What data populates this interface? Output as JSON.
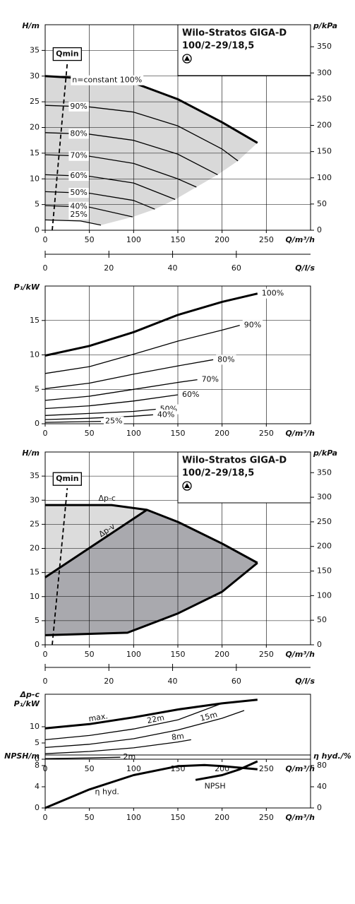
{
  "chart_data": [
    {
      "type": "line",
      "title": "Wilo-Stratos GIGA-D",
      "subtitle": "100/2–29/18,5",
      "xlabel": "Q/m³/h",
      "ylabel": "H/m",
      "y2label": "p/kPa",
      "xlim": [
        0,
        300
      ],
      "xticks": [
        0,
        50,
        100,
        150,
        200,
        250
      ],
      "ylim": [
        0,
        40
      ],
      "yticks": [
        0,
        5,
        10,
        15,
        20,
        25,
        30,
        35
      ],
      "y2lim": [
        0,
        392
      ],
      "y2ticks": [
        0,
        50,
        100,
        150,
        200,
        250,
        300,
        350
      ],
      "grid": true,
      "color": "#000000",
      "fill": [
        "#d9d9d9"
      ],
      "qmin": {
        "name": "Qmin",
        "x": [
          8,
          25
        ],
        "values": [
          0,
          32.5
        ]
      },
      "series": [
        {
          "name": "n=constant 100%",
          "x": [
            0,
            50,
            100,
            150,
            200,
            240
          ],
          "values": [
            30,
            29.5,
            28.7,
            25.5,
            21,
            17
          ]
        },
        {
          "name": "90%",
          "x": [
            0,
            50,
            100,
            150,
            200,
            218
          ],
          "values": [
            24.3,
            24,
            23,
            20.3,
            15.8,
            13.5
          ]
        },
        {
          "name": "80%",
          "x": [
            0,
            50,
            100,
            150,
            195
          ],
          "values": [
            19,
            18.7,
            17.5,
            14.8,
            10.8
          ]
        },
        {
          "name": "70%",
          "x": [
            0,
            50,
            100,
            150,
            171
          ],
          "values": [
            14.7,
            14.4,
            13,
            10,
            8.4
          ]
        },
        {
          "name": "60%",
          "x": [
            0,
            50,
            100,
            147
          ],
          "values": [
            10.8,
            10.5,
            9.2,
            6
          ]
        },
        {
          "name": "50%",
          "x": [
            0,
            50,
            100,
            124
          ],
          "values": [
            7.5,
            7.2,
            5.8,
            4.1
          ]
        },
        {
          "name": "40%",
          "x": [
            0,
            50,
            99
          ],
          "values": [
            4.8,
            4.5,
            2.6
          ]
        },
        {
          "name": "25%",
          "x": [
            0,
            40,
            63
          ],
          "values": [
            2,
            1.8,
            1.0
          ]
        }
      ]
    },
    {
      "type": "axis",
      "xlabel": "Q/l/s",
      "xlim": [
        0,
        83.3
      ],
      "xticks": [
        0,
        20,
        40,
        60
      ]
    },
    {
      "type": "line",
      "xlabel": "Q/m³/h",
      "ylabel": "P₁/kW",
      "xlim": [
        0,
        300
      ],
      "xticks": [
        0,
        50,
        100,
        150,
        200,
        250
      ],
      "ylim": [
        0,
        20
      ],
      "yticks": [
        0,
        5,
        10,
        15
      ],
      "grid": true,
      "color": "#000000",
      "series": [
        {
          "name": "100%",
          "x": [
            0,
            50,
            100,
            150,
            200,
            240
          ],
          "values": [
            9.9,
            11.3,
            13.3,
            15.8,
            17.7,
            18.9
          ]
        },
        {
          "name": "90%",
          "x": [
            0,
            50,
            100,
            150,
            200,
            220
          ],
          "values": [
            7.3,
            8.3,
            10.1,
            12,
            13.6,
            14.3
          ]
        },
        {
          "name": "80%",
          "x": [
            0,
            50,
            100,
            150,
            190
          ],
          "values": [
            5.1,
            5.9,
            7.2,
            8.4,
            9.3
          ]
        },
        {
          "name": "70%",
          "x": [
            0,
            50,
            100,
            150,
            172
          ],
          "values": [
            3.4,
            4,
            5,
            6,
            6.4
          ]
        },
        {
          "name": "60%",
          "x": [
            0,
            50,
            100,
            150
          ],
          "values": [
            2.2,
            2.6,
            3.3,
            4.2
          ]
        },
        {
          "name": "50%",
          "x": [
            0,
            50,
            100,
            125
          ],
          "values": [
            1.2,
            1.5,
            1.8,
            2.1
          ]
        },
        {
          "name": "40%",
          "x": [
            0,
            50,
            100,
            122
          ],
          "values": [
            0.6,
            0.8,
            1.1,
            1.3
          ]
        },
        {
          "name": "25%",
          "x": [
            0,
            40,
            63
          ],
          "values": [
            0.2,
            0.3,
            0.35
          ]
        }
      ]
    },
    {
      "type": "line",
      "title": "Wilo-Stratos GIGA-D",
      "subtitle": "100/2–29/18,5",
      "xlabel": "Q/m³/h",
      "ylabel": "H/m",
      "y2label": "p/kPa",
      "xlim": [
        0,
        300
      ],
      "xticks": [
        0,
        50,
        100,
        150,
        200,
        250
      ],
      "ylim": [
        0,
        40
      ],
      "yticks": [
        0,
        5,
        10,
        15,
        20,
        25,
        30,
        35
      ],
      "y2lim": [
        0,
        392
      ],
      "y2ticks": [
        0,
        50,
        100,
        150,
        200,
        250,
        300,
        350
      ],
      "grid": true,
      "color": "#000000",
      "fill": [
        "#dcdcdc",
        "#a9a9ae"
      ],
      "qmin": {
        "name": "Qmin",
        "x": [
          8,
          25
        ],
        "values": [
          0,
          32.5
        ]
      },
      "series": [
        {
          "name": "Δp-c",
          "x": [
            0,
            75,
            115,
            150,
            200,
            240
          ],
          "values": [
            29,
            29,
            28,
            25.5,
            21,
            17
          ]
        },
        {
          "name": "Δp-v",
          "x": [
            0,
            115
          ],
          "values": [
            14,
            28
          ]
        },
        {
          "x": [
            0,
            93,
            150,
            200,
            240
          ],
          "values": [
            2,
            2.5,
            6.5,
            11,
            17
          ]
        }
      ]
    },
    {
      "type": "axis",
      "xlabel": "Q/l/s",
      "xlim": [
        0,
        83.3
      ],
      "xticks": [
        0,
        20,
        40,
        60
      ]
    },
    {
      "type": "line",
      "mode_label": "Δp-c",
      "xlabel": "Q/m³/h",
      "ylabel": "P₁/kW",
      "xlim": [
        0,
        300
      ],
      "xticks": [
        0,
        50,
        100,
        150,
        200,
        250
      ],
      "ylim": [
        0,
        20
      ],
      "yticks": [
        0,
        5,
        10
      ],
      "grid": false,
      "color": "#000000",
      "series": [
        {
          "name": "max.",
          "x": [
            0,
            50,
            100,
            150,
            200,
            240
          ],
          "values": [
            9.5,
            10.8,
            12.9,
            15.3,
            17.2,
            18.3
          ]
        },
        {
          "name": "22m",
          "x": [
            0,
            50,
            100,
            150,
            200
          ],
          "values": [
            6,
            7.3,
            9.3,
            12.1,
            17.2
          ]
        },
        {
          "name": "15m",
          "x": [
            0,
            50,
            100,
            150,
            200,
            225
          ],
          "values": [
            3.6,
            4.6,
            6.3,
            9,
            12.6,
            15
          ]
        },
        {
          "name": "8m",
          "x": [
            0,
            50,
            100,
            150,
            165
          ],
          "values": [
            1.7,
            2.4,
            3.5,
            5.3,
            6
          ]
        },
        {
          "name": "2m",
          "x": [
            0,
            50,
            85
          ],
          "values": [
            0.2,
            0.4,
            0.6
          ]
        }
      ]
    },
    {
      "type": "line",
      "xlabel": "Q/m³/h",
      "ylabel": "NPSH/m",
      "y2label": "η hyd./%",
      "xlim": [
        0,
        300
      ],
      "xticks": [
        0,
        50,
        100,
        150,
        200,
        250
      ],
      "ylim": [
        0,
        10
      ],
      "yticks": [
        0,
        4,
        8
      ],
      "y2lim": [
        0,
        100
      ],
      "y2ticks": [
        0,
        40,
        80
      ],
      "grid": false,
      "color": "#000000",
      "series": [
        {
          "name": "η hyd.",
          "axis": "y2",
          "x": [
            0,
            50,
            100,
            150,
            180,
            200,
            240
          ],
          "values": [
            0,
            35,
            62,
            79,
            81,
            79,
            73
          ]
        },
        {
          "name": "NPSH",
          "x": [
            170,
            200,
            220,
            240
          ],
          "values": [
            5.3,
            6.2,
            7.3,
            8.8
          ]
        }
      ]
    }
  ]
}
